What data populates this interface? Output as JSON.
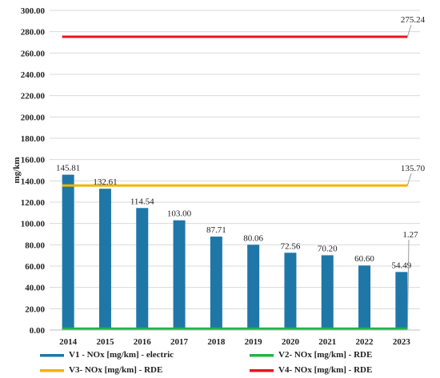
{
  "chart_data": {
    "type": "bar",
    "ylabel": "mg/km",
    "ylim": [
      0,
      300
    ],
    "yticks": [
      "0.00",
      "20.00",
      "40.00",
      "60.00",
      "80.00",
      "100.00",
      "120.00",
      "140.00",
      "160.00",
      "180.00",
      "200.00",
      "220.00",
      "240.00",
      "260.00",
      "280.00",
      "300.00"
    ],
    "categories": [
      "2014",
      "2015",
      "2016",
      "2017",
      "2018",
      "2019",
      "2020",
      "2021",
      "2022",
      "2023"
    ],
    "grid": "horizontal",
    "legend_position": "bottom",
    "series": [
      {
        "name": "V1 - NOx [mg/km] - electric",
        "kind": "bar",
        "color": "#1f77a8",
        "values": [
          145.81,
          132.61,
          114.54,
          103.0,
          87.71,
          80.06,
          72.56,
          70.2,
          60.6,
          54.49
        ],
        "labels": [
          "145.81",
          "132.61",
          "114.54",
          "103.00",
          "87.71",
          "80.06",
          "72.56",
          "70.20",
          "60.60",
          "54.49"
        ]
      },
      {
        "name": "V2- NOx [mg/km] - RDE",
        "kind": "line",
        "color": "#22b34a",
        "value": 1.27,
        "label": "1.27"
      },
      {
        "name": "V3- NOx [mg/km] - RDE",
        "kind": "line",
        "color": "#f0b400",
        "value": 135.7,
        "label": "135.70"
      },
      {
        "name": "V4- NOx [mg/km] - RDE",
        "kind": "line",
        "color": "#e8141c",
        "value": 275.24,
        "label": "275.24"
      }
    ]
  }
}
